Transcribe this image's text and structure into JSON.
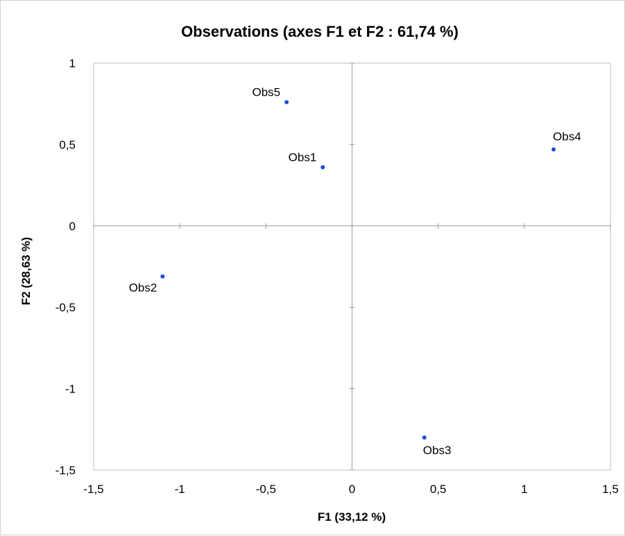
{
  "chart_data": {
    "type": "scatter",
    "title": "Observations (axes F1 et F2 : 61,74 %)",
    "xlabel": "F1 (33,12 %)",
    "ylabel": "F2 (28,63 %)",
    "xlim": [
      -1.5,
      1.5
    ],
    "ylim": [
      -1.5,
      1
    ],
    "xticks": [
      -1.5,
      -1,
      -0.5,
      0,
      0.5,
      1,
      1.5
    ],
    "xtick_labels": [
      "-1,5",
      "-1",
      "-0,5",
      "0",
      "0,5",
      "1",
      "1,5"
    ],
    "yticks": [
      1,
      0.5,
      0,
      -0.5,
      -1,
      -1.5
    ],
    "ytick_labels": [
      "1",
      "0,5",
      "0",
      "-0,5",
      "-1",
      "-1,5"
    ],
    "grid": false,
    "legend": "none",
    "marker_color": "#1f4fd1",
    "points": [
      {
        "label": "Obs1",
        "x": -0.17,
        "y": 0.36,
        "label_pos": "above-left"
      },
      {
        "label": "Obs2",
        "x": -1.1,
        "y": -0.31,
        "label_pos": "below-left"
      },
      {
        "label": "Obs3",
        "x": 0.42,
        "y": -1.3,
        "label_pos": "below"
      },
      {
        "label": "Obs4",
        "x": 1.17,
        "y": 0.47,
        "label_pos": "above-right"
      },
      {
        "label": "Obs5",
        "x": -0.38,
        "y": 0.76,
        "label_pos": "above-left"
      }
    ]
  }
}
